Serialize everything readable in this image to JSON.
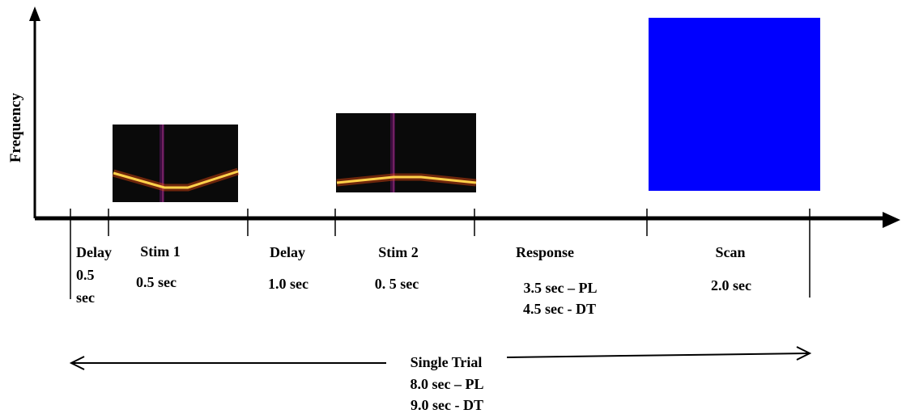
{
  "y_axis_label": "Frequency",
  "segments": [
    {
      "name": "Delay",
      "duration": "0.5",
      "unit": "sec"
    },
    {
      "name": "Stim 1",
      "duration": "0.5 sec"
    },
    {
      "name": "Delay",
      "duration": "1.0 sec"
    },
    {
      "name": "Stim 2",
      "duration": "0. 5 sec"
    },
    {
      "name": "Response",
      "duration_pl": "3.5 sec – PL",
      "duration_dt": "4.5 sec - DT"
    },
    {
      "name": "Scan",
      "duration": "2.0 sec"
    }
  ],
  "single_trial": {
    "label": "Single Trial",
    "duration_pl": "8.0 sec – PL",
    "duration_dt": "9.0 sec - DT"
  },
  "colors": {
    "scan_block": "#0000ff",
    "spectrogram_background": "#0a0a0a",
    "spectrogram_trace": "#ffd24a"
  }
}
